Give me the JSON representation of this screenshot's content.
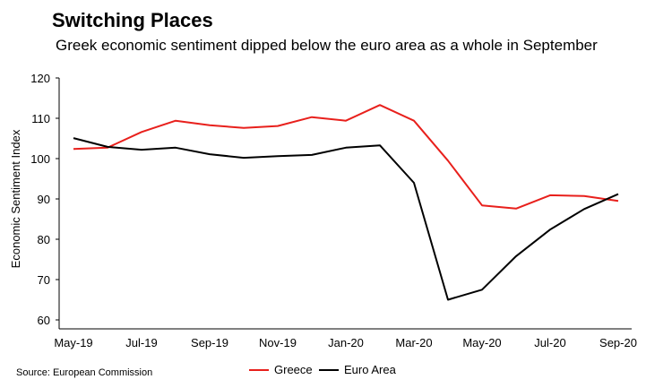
{
  "title": "Switching Places",
  "subtitle": "Greek economic sentiment dipped below the euro area as a whole in September",
  "source": "Source: European Commission",
  "chart_data": {
    "type": "line",
    "ylabel": "Economic Sentiment Index",
    "ylim": [
      60,
      120
    ],
    "yticks": [
      60,
      70,
      80,
      90,
      100,
      110,
      120
    ],
    "x": [
      "May-19",
      "Jun-19",
      "Jul-19",
      "Aug-19",
      "Sep-19",
      "Oct-19",
      "Nov-19",
      "Dec-19",
      "Jan-20",
      "Feb-20",
      "Mar-20",
      "Apr-20",
      "May-20",
      "Jun-20",
      "Jul-20",
      "Aug-20",
      "Sep-20"
    ],
    "xtick_labels": [
      "May-19",
      "Jul-19",
      "Sep-19",
      "Nov-19",
      "Jan-20",
      "Mar-20",
      "May-20",
      "Jul-20",
      "Sep-20"
    ],
    "grid": false,
    "legend_position": "bottom",
    "series": [
      {
        "name": "Greece",
        "color": "#e8201c",
        "values": [
          102.4,
          102.7,
          106.6,
          109.4,
          108.3,
          107.6,
          108.1,
          110.3,
          109.4,
          113.3,
          109.4,
          99.5,
          88.4,
          87.6,
          90.9,
          90.7,
          89.5
        ]
      },
      {
        "name": "Euro Area",
        "color": "#000000",
        "values": [
          105.1,
          102.9,
          102.2,
          102.7,
          101.1,
          100.2,
          100.6,
          100.9,
          102.7,
          103.3,
          94.0,
          65.0,
          67.5,
          75.8,
          82.4,
          87.5,
          91.2
        ]
      }
    ]
  }
}
